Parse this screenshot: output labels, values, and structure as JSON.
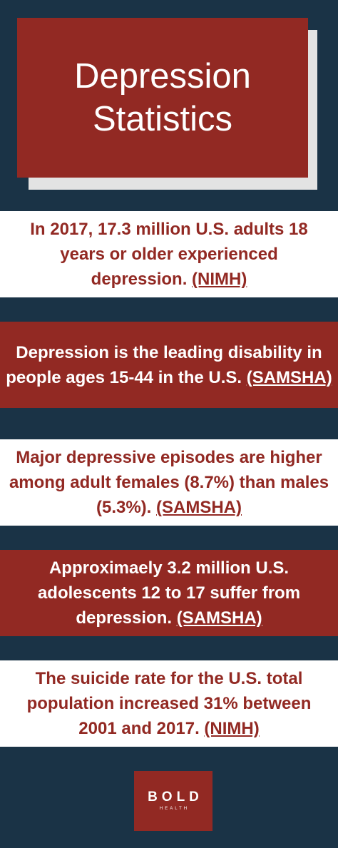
{
  "title": {
    "line1": "Depression",
    "line2": "Statistics"
  },
  "colors": {
    "navy_background": "#1a3346",
    "brand_red": "#922923",
    "white": "#ffffff",
    "shadow_gray": "#e3e3e3"
  },
  "facts": [
    {
      "text": "In 2017, 17.3 million U.S. adults 18 years or older experienced depression. ",
      "source": "(NIMH)"
    },
    {
      "text": "Depression is the leading disability in people ages 15-44 in the U.S. ",
      "source": "(SAMSHA)"
    },
    {
      "text": "Major depressive episodes are higher among adult females (8.7%) than males (5.3%). ",
      "source": "(SAMSHA)"
    },
    {
      "text": "Approximaely 3.2 million U.S. adolescents 12 to 17 suffer from depression. ",
      "source": "(SAMSHA)"
    },
    {
      "text": "The suicide rate for the U.S. total population increased 31% between 2001 and 2017. ",
      "source": "(NIMH)"
    }
  ],
  "logo": {
    "main": "BOLD",
    "sub": "HEALTH"
  }
}
